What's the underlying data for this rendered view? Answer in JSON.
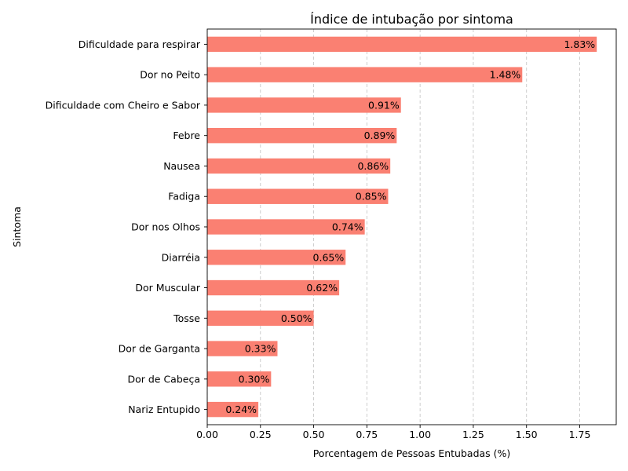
{
  "chart_data": {
    "type": "bar",
    "orientation": "horizontal",
    "title": "Índice de intubação por sintoma",
    "xlabel": "Porcentagem de Pessoas Entubadas (%)",
    "ylabel": "Sintoma",
    "categories": [
      "Dificuldade para respirar",
      "Dor no Peito",
      "Dificuldade com Cheiro e Sabor",
      "Febre",
      "Nausea",
      "Fadiga",
      "Dor nos Olhos",
      "Diarréia",
      "Dor Muscular",
      "Tosse",
      "Dor de Garganta",
      "Dor de Cabeça",
      "Nariz Entupido"
    ],
    "values": [
      1.83,
      1.48,
      0.91,
      0.89,
      0.86,
      0.85,
      0.74,
      0.65,
      0.62,
      0.5,
      0.33,
      0.3,
      0.24
    ],
    "value_labels": [
      "1.83%",
      "1.48%",
      "0.91%",
      "0.89%",
      "0.86%",
      "0.85%",
      "0.74%",
      "0.65%",
      "0.62%",
      "0.50%",
      "0.33%",
      "0.30%",
      "0.24%"
    ],
    "xlim": [
      0,
      1.9215
    ],
    "xticks": [
      0.0,
      0.25,
      0.5,
      0.75,
      1.0,
      1.25,
      1.5,
      1.75
    ],
    "xtick_labels": [
      "0.00",
      "0.25",
      "0.50",
      "0.75",
      "1.00",
      "1.25",
      "1.50",
      "1.75"
    ],
    "grid": "x-dashed",
    "colors": {
      "bar": "#fa8072",
      "grid": "#c8c8c8"
    }
  }
}
